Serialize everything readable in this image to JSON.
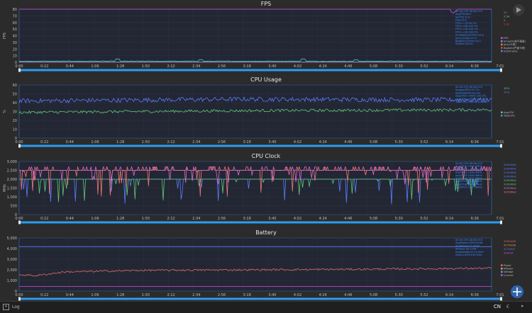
{
  "colors": {
    "bg": "#2b2b2b",
    "plot_bg": "#232733",
    "plot_border": "#2f63a8",
    "grid": "#2e3547",
    "scrollbar": "#2a9df4",
    "tick": "#bdbdbd",
    "stats": "#3b8cff"
  },
  "time_ticks": [
    "0:00",
    "0:22",
    "0:44",
    "1:06",
    "1:28",
    "1:50",
    "2:12",
    "2:34",
    "2:56",
    "3:18",
    "3:40",
    "4:02",
    "4:24",
    "4:46",
    "5:08",
    "5:30",
    "5:52",
    "6:14",
    "6:36",
    "7:01"
  ],
  "chart_data": [
    {
      "type": "line",
      "title": "FPS",
      "ylabel": "FPS",
      "ylim": [
        0,
        80
      ],
      "yticks": [
        "0",
        "10",
        "20",
        "30",
        "40",
        "50",
        "60",
        "70",
        "80"
      ],
      "xlim": [
        0,
        421
      ],
      "legend": [
        "FPS",
        "Smooth(帧平稳度)",
        "Jank(卡顿)",
        "BigJank(严重卡顿)",
        "InterFrame"
      ],
      "legend_colors": [
        "#d04fd8",
        "#4fa3ff",
        "#ff7a3c",
        "#e04040",
        "#5b7cff"
      ],
      "right_labels": [
        "90",
        "5.94",
        "0",
        "0.00"
      ],
      "right_label_colors": [
        "#d04fd8",
        "#5ec97a",
        "#ff7a3c",
        "#e04040"
      ],
      "stats": [
        "00:00:279-06:60:219",
        "AvgFPS:89.9",
        "VarFPS:5.21",
        "Drop:0.4",
        "FPS>=75:99.1%",
        "FPS>=60:100.0%",
        "FPS>=45:100.0%",
        "FPS>=30:100.0%",
        "SmallJank(/10min):0.0",
        "Jank(/10min):0.0",
        "BigJank(/10min):0.0",
        "Stutter:0.00%"
      ],
      "series": [
        {
          "name": "FPS",
          "color": "#d04fd8",
          "shape": "fps",
          "base": 88.5,
          "noise": 1.2,
          "dips": [
            [
              24,
              86
            ],
            [
              80,
              86
            ],
            [
              108,
              86
            ],
            [
              180,
              85
            ],
            [
              252,
              84
            ],
            [
              262,
              83
            ],
            [
              282,
              86
            ],
            [
              340,
              85
            ],
            [
              352,
              85
            ],
            [
              355,
              80
            ],
            [
              383,
              81
            ],
            [
              387,
              74
            ],
            [
              389,
              79
            ],
            [
              406,
              86
            ],
            [
              415,
              84
            ]
          ]
        },
        {
          "name": "Smooth(帧平稳度)",
          "color": "#4fc3c8",
          "shape": "low",
          "base": 1.5,
          "noise": 1.0,
          "spikes": [
            [
              88,
              5
            ],
            [
              162,
              4
            ],
            [
              253,
              5
            ],
            [
              300,
              4
            ]
          ]
        },
        {
          "name": "Jank(卡顿)",
          "color": "#ff7a3c",
          "shape": "flat",
          "base": 0.3
        },
        {
          "name": "InterFrame",
          "color": "#5b7cff",
          "shape": "flat",
          "base": 0.6
        }
      ]
    },
    {
      "type": "line",
      "title": "CPU Usage",
      "ylabel": "%",
      "ylim": [
        0,
        60
      ],
      "yticks": [
        "0",
        "10",
        "20",
        "30",
        "40",
        "50",
        "60"
      ],
      "xlim": [
        0,
        421
      ],
      "legend": [
        "AppCPU",
        "TotalCPU"
      ],
      "legend_colors": [
        "#5ec97a",
        "#5b7cff"
      ],
      "right_labels": [
        "38%",
        "40%"
      ],
      "right_label_colors": [
        "#5ec97a",
        "#5b7cff"
      ],
      "stats": [
        "00:00:279-06:60:219",
        "AvgAppCPU:35.7%",
        "AvgTotalCPU:42.3%",
        "AppCPU<=60%:100.0%",
        "AppCPU<=80%:100.0%",
        "TotalCPU<=60%:100.0%"
      ],
      "series": [
        {
          "name": "TotalCPU",
          "color": "#5b7cff",
          "shape": "noisy",
          "base": 43,
          "noise": 2.6,
          "drift": [
            [
              0,
              42
            ],
            [
              200,
              44
            ],
            [
              421,
              43
            ]
          ]
        },
        {
          "name": "AppCPU",
          "color": "#5ec97a",
          "shape": "noisy",
          "base": 31,
          "noise": 1.6,
          "drift": [
            [
              0,
              29
            ],
            [
              200,
              31
            ],
            [
              421,
              32
            ]
          ]
        }
      ]
    },
    {
      "type": "line",
      "title": "CPU Clock",
      "ylabel": "MHz",
      "ylim": [
        0,
        3000
      ],
      "yticks": [
        "0",
        "500",
        "1,000",
        "1,500",
        "2,000",
        "2,500",
        "3,000"
      ],
      "xlim": [
        0,
        421
      ],
      "legend": [],
      "legend_colors": [],
      "right_labels": [
        "2000MHz",
        "2000MHz",
        "2000MHz",
        "2000MHz",
        "2000MHz",
        "2000MHz",
        "3050MHz",
        "3050MHz"
      ],
      "right_label_colors": [
        "#5b7cff",
        "#5b7cff",
        "#5b7cff",
        "#5b7cff",
        "#5ec97a",
        "#5ec97a",
        "#e06ad6",
        "#f07a7a"
      ],
      "stats": [
        "00:00:279-06:60:219",
        "AvgCPU0:1938.3MHz",
        "AvgCPU1:1938.3MHz",
        "AvgCPU2:1938.3MHz",
        "AvgCPU3:1938.3MHz",
        "AvgCPU4:2015.9MHz",
        "AvgCPU5:2015.9MHz",
        "AvgCPU6:2367.0MHz",
        "AvgCPU7:2367.0MHz"
      ],
      "series": [
        {
          "name": "CPU0-3",
          "color": "#5b7cff",
          "shape": "clock",
          "base": 2000,
          "low": 600,
          "prob": 0.07
        },
        {
          "name": "CPU4-5",
          "color": "#5ec97a",
          "shape": "clock",
          "base": 2000,
          "low": 700,
          "prob": 0.09
        },
        {
          "name": "CPU6-7",
          "color": "#f07a7a",
          "shape": "clock",
          "base": 2500,
          "low": 1000,
          "prob": 0.12
        },
        {
          "name": "CPU7",
          "color": "#e06ad6",
          "shape": "clock",
          "base": 2500,
          "low": 1700,
          "prob": 0.1
        }
      ]
    },
    {
      "type": "line",
      "title": "Battery",
      "ylabel": "",
      "ylim": [
        0,
        5000
      ],
      "yticks": [
        "0",
        "1,000",
        "2,000",
        "3,000",
        "4,000",
        "5,000"
      ],
      "xlim": [
        0,
        421
      ],
      "legend": [
        "Power",
        "RPower",
        "Voltage",
        "Current"
      ],
      "legend_colors": [
        "#e06a6a",
        "#ff9a3c",
        "#4aa3ff",
        "#d04fd8"
      ],
      "right_labels": [
        "2000mW",
        "4175mW",
        "4174mV",
        "429mA"
      ],
      "right_label_colors": [
        "#e06a6a",
        "#ff9a3c",
        "#5b7cff",
        "#d04fd8"
      ],
      "stats": [
        "00:00:279-06:60:219",
        "AvgPower:1839.9mW",
        "AvgRPower:0.0mW",
        "APower:33.1mW",
        "AvgVoltage:4174.6mV",
        "AvgCurrent:440.6mA"
      ],
      "series": [
        {
          "name": "Voltage",
          "color": "#5b7cff",
          "shape": "flat",
          "base": 4180
        },
        {
          "name": "Power",
          "color": "#e06a6a",
          "shape": "noisy",
          "base": 2000,
          "noise": 90,
          "drift": [
            [
              0,
              1550
            ],
            [
              15,
              1450
            ],
            [
              40,
              1800
            ],
            [
              110,
              1950
            ],
            [
              300,
              2050
            ],
            [
              421,
              2150
            ]
          ]
        },
        {
          "name": "Current",
          "color": "#d04fd8",
          "shape": "flat",
          "base": 440
        }
      ]
    }
  ],
  "toolbar": {
    "log_label": "Log",
    "lang_label": "CN",
    "moon": "☾",
    "more": "»"
  }
}
